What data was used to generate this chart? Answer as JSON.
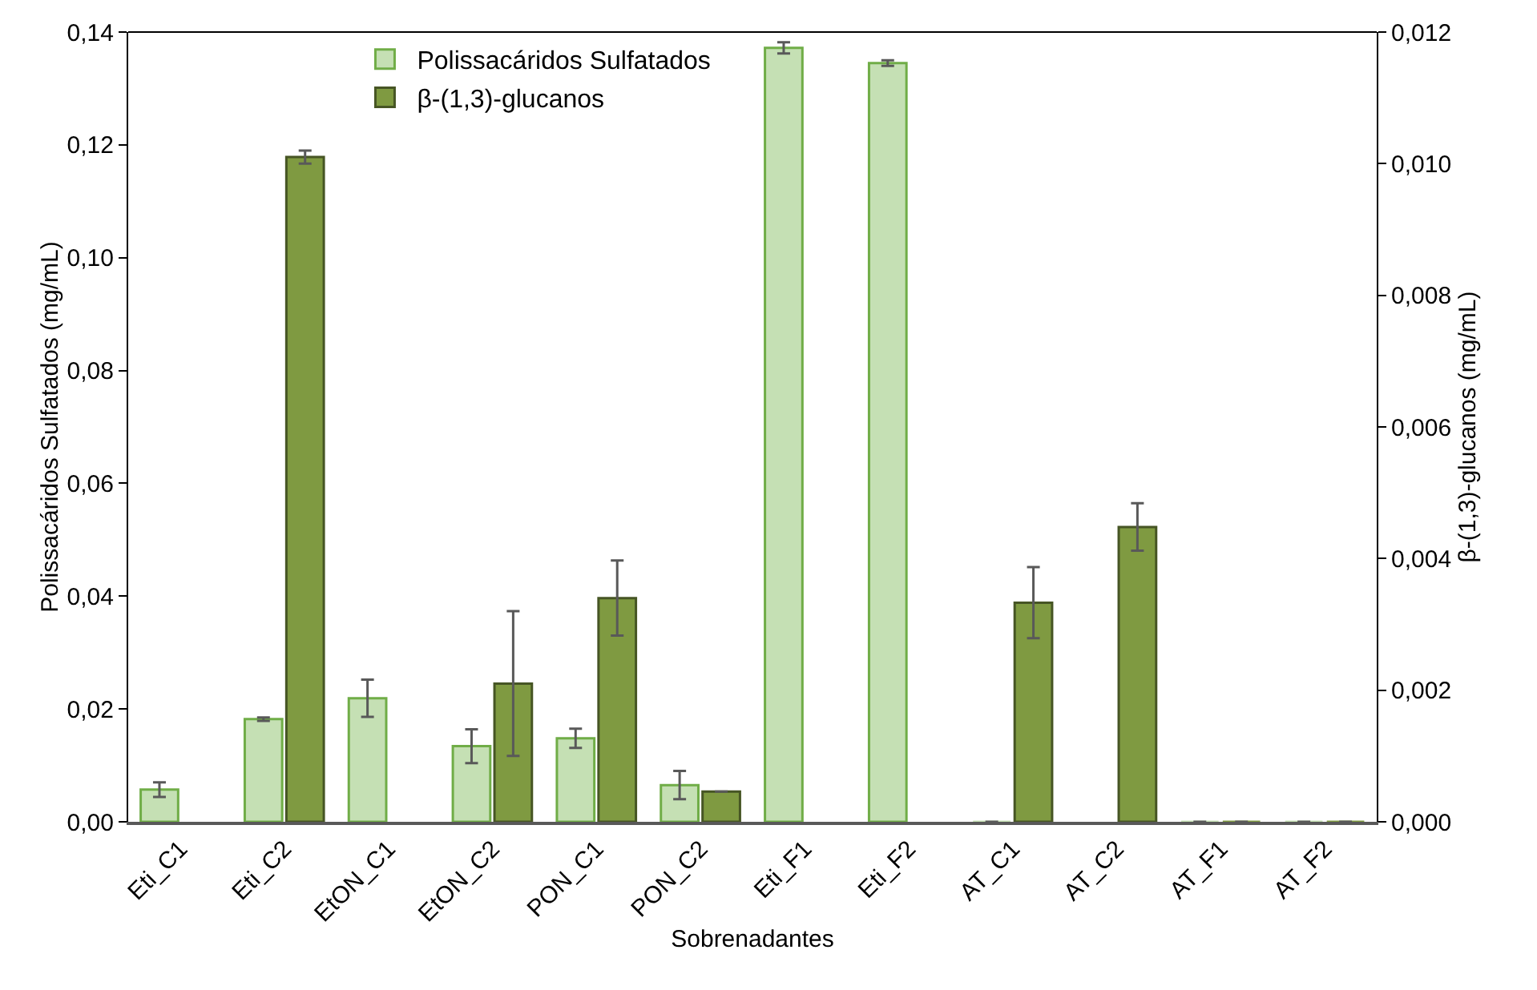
{
  "chart_data": {
    "type": "bar",
    "xlabel": "Sobrenadantes",
    "ylabel": "Polissacáridos Sulfatados (mg/mL)",
    "y2label": "β-(1,3)-glucanos (mg/mL)",
    "categories": [
      "Eti_C1",
      "Eti_C2",
      "EtON_C1",
      "EtON_C2",
      "PON_C1",
      "PON_C2",
      "Eti_F1",
      "Eti_F2",
      "AT_C1",
      "AT_C2",
      "AT_F1",
      "AT_F2"
    ],
    "series": [
      {
        "name": "Polissacáridos Sulfatados",
        "color": "#c5e0b4",
        "values": [
          0.0057,
          0.0182,
          0.0219,
          0.0134,
          0.0148,
          0.0065,
          0.1372,
          0.1345,
          0,
          null,
          0,
          0
        ],
        "errors": [
          0.0013,
          0.0003,
          0.0033,
          0.003,
          0.0017,
          0.0025,
          0.001,
          0.0005,
          null,
          null,
          null,
          null
        ]
      },
      {
        "name": "β-(1,3)-glucanos",
        "color": "#7f9a41",
        "axis": "y2",
        "values": [
          null,
          0.0101,
          null,
          0.0021,
          0.0034,
          0.00046,
          null,
          null,
          0.00333,
          0.00448,
          0,
          0
        ],
        "errors": [
          null,
          0.0001,
          null,
          0.0011,
          0.00057,
          null,
          null,
          null,
          0.00054,
          0.00036,
          null,
          null
        ]
      }
    ],
    "ylim": [
      0,
      0.14
    ],
    "yticks": [
      {
        "value": 0,
        "label": "0,00"
      },
      {
        "value": 0.02,
        "label": "0,02"
      },
      {
        "value": 0.04,
        "label": "0,04"
      },
      {
        "value": 0.06,
        "label": "0,06"
      },
      {
        "value": 0.08,
        "label": "0,08"
      },
      {
        "value": 0.1,
        "label": "0,10"
      },
      {
        "value": 0.12,
        "label": "0,12"
      },
      {
        "value": 0.14,
        "label": "0,14"
      }
    ],
    "y2lim": [
      0,
      0.012
    ],
    "y2ticks": [
      {
        "value": 0,
        "label": "0,000"
      },
      {
        "value": 0.002,
        "label": "0,002"
      },
      {
        "value": 0.004,
        "label": "0,004"
      },
      {
        "value": 0.006,
        "label": "0,006"
      },
      {
        "value": 0.008,
        "label": "0,008"
      },
      {
        "value": 0.01,
        "label": "0,010"
      },
      {
        "value": 0.012,
        "label": "0,012"
      }
    ],
    "grid": false,
    "legend": "top"
  }
}
